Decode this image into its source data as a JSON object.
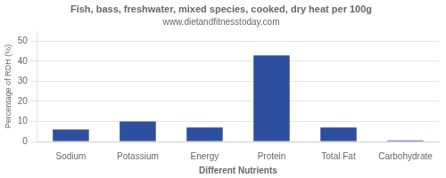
{
  "chart_data": {
    "type": "bar",
    "title": "Fish, bass, freshwater, mixed species, cooked, dry heat per 100g",
    "subtitle": "www.dietandfitnesstoday.com",
    "xlabel": "Different Nutrients",
    "ylabel": "Percentage of RDH (%)",
    "categories": [
      "Sodium",
      "Potassium",
      "Energy",
      "Protein",
      "Total Fat",
      "Carbohydrate"
    ],
    "values": [
      6,
      10,
      7,
      43,
      7,
      0.5
    ],
    "color": "#2e4ea0",
    "ylim": [
      0,
      55
    ],
    "yticks": [
      0,
      10,
      20,
      30,
      40,
      50
    ],
    "grid": true
  }
}
